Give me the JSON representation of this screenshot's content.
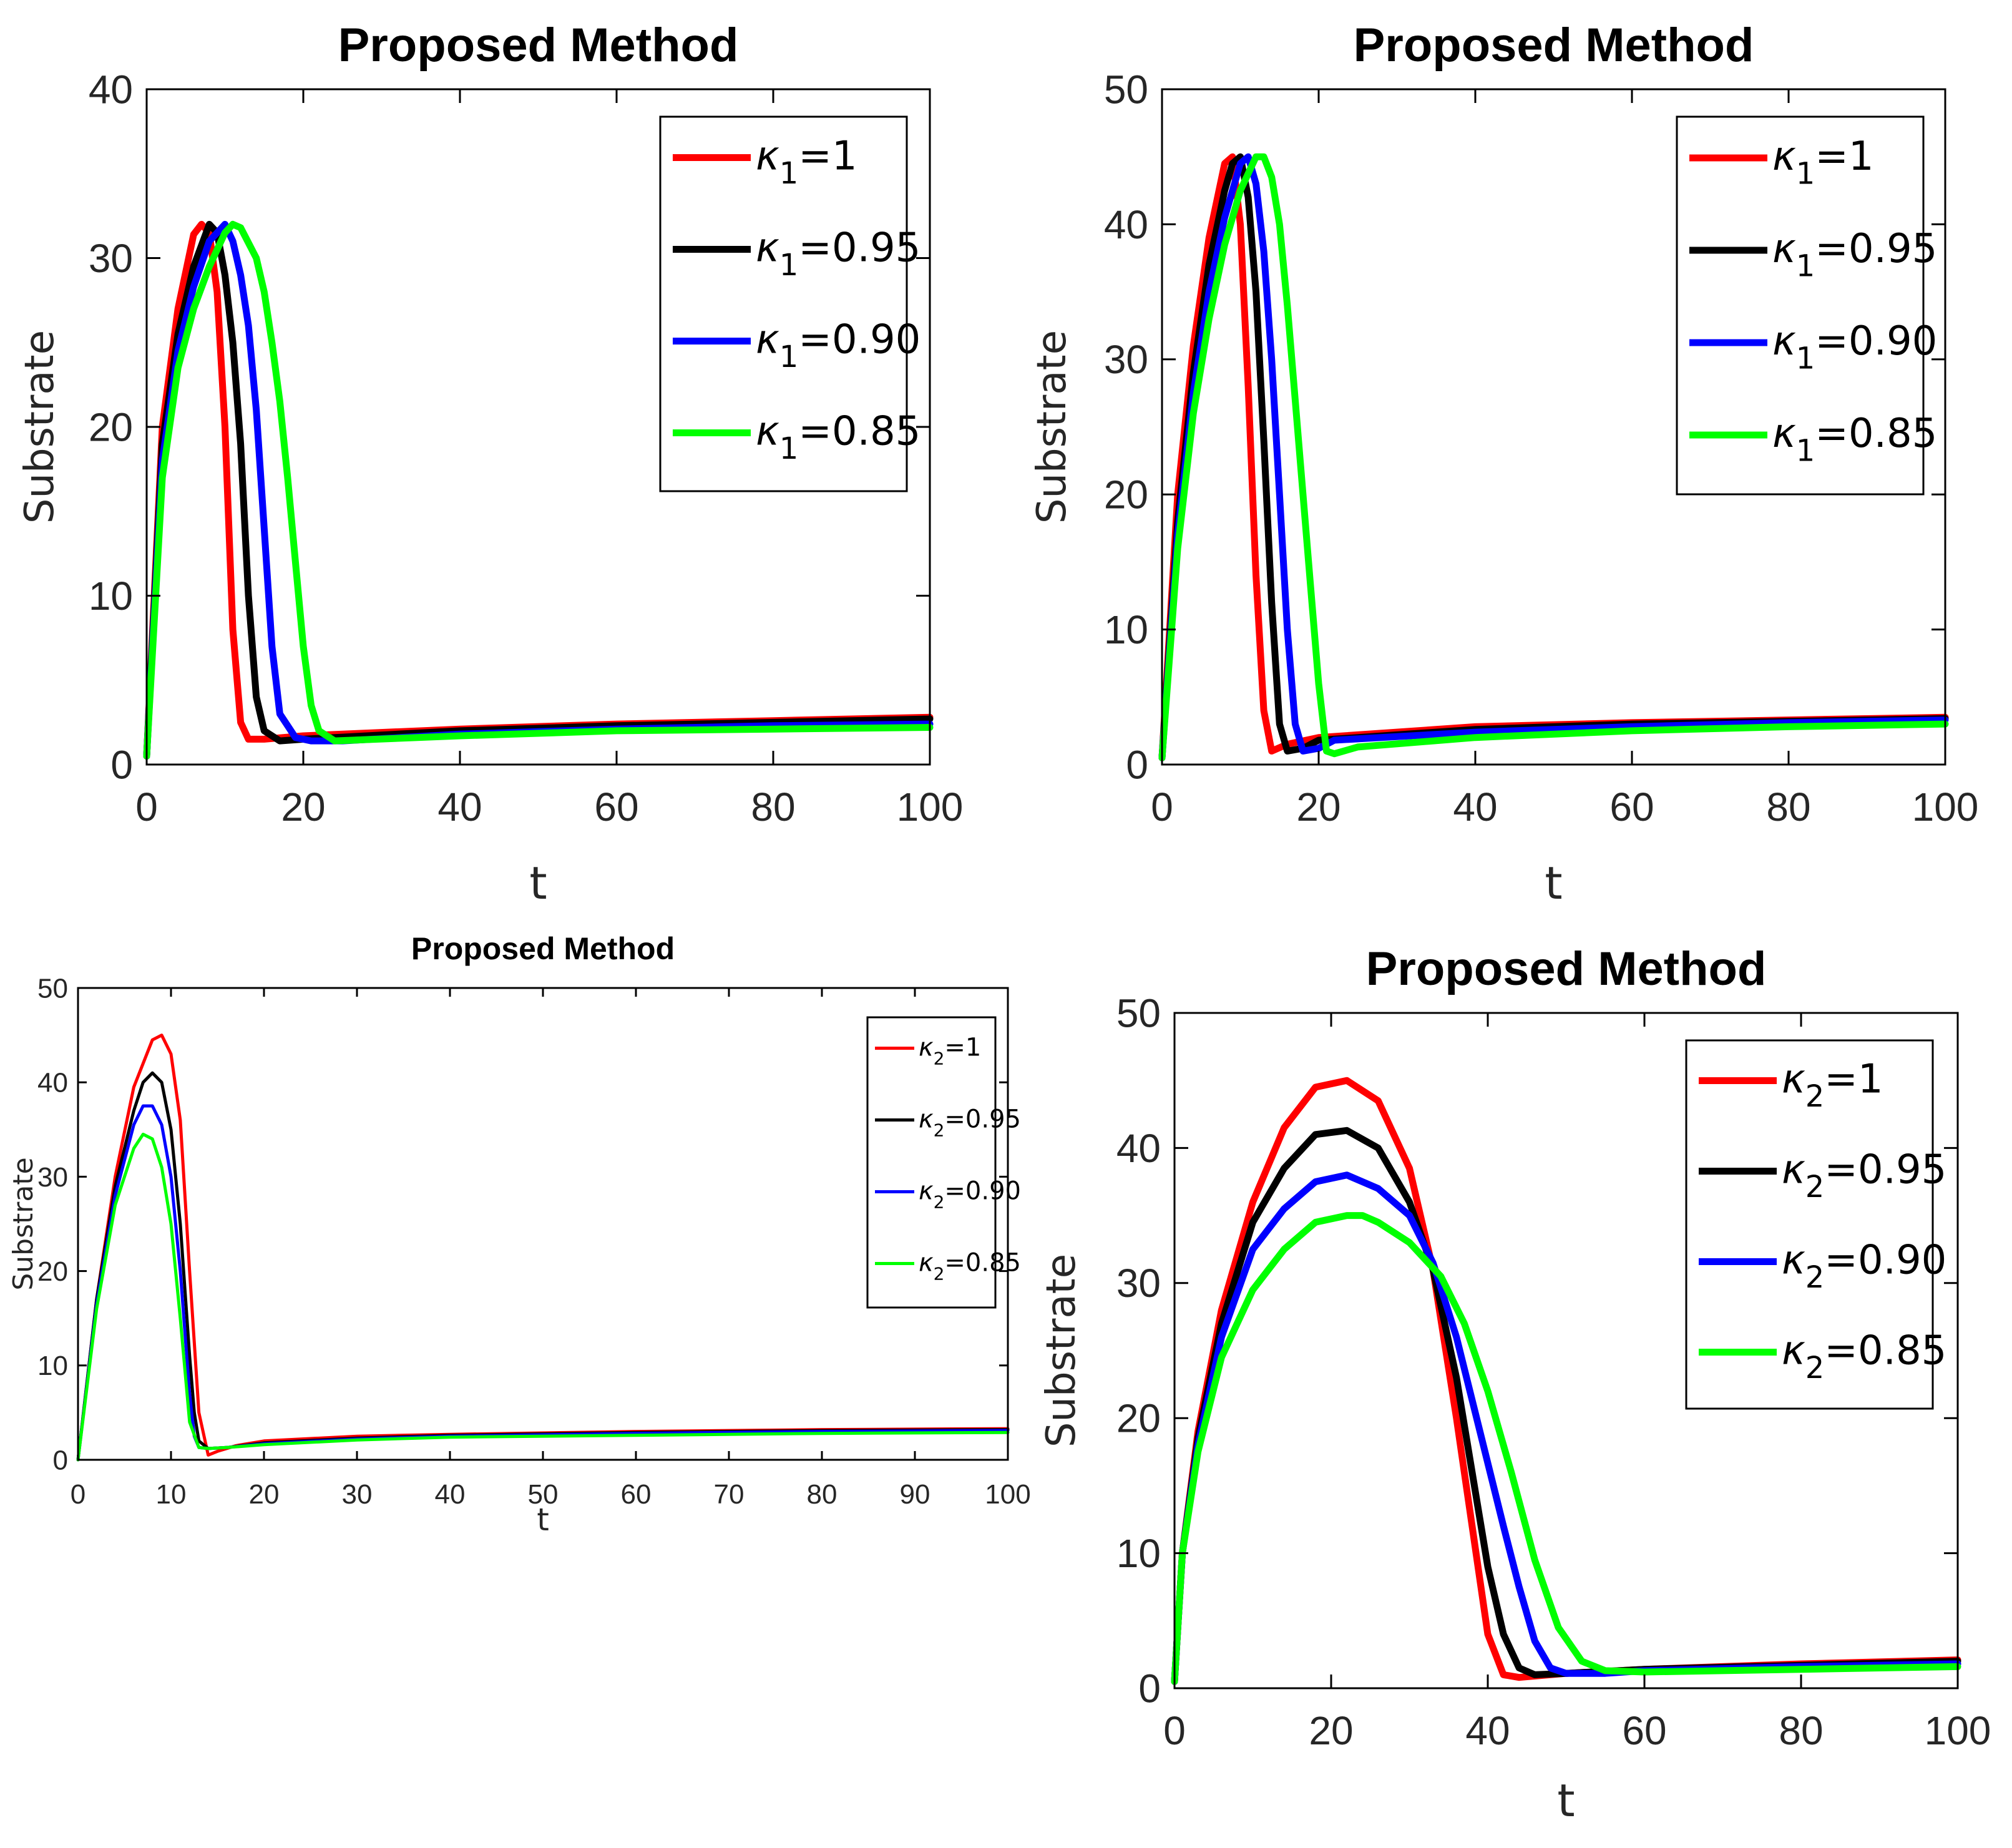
{
  "colors": {
    "red": "#ff0000",
    "black": "#000000",
    "blue": "#0000ff",
    "green": "#00ff00"
  },
  "chart_data": [
    {
      "type": "line",
      "title": "Proposed Method",
      "xlabel": "t",
      "ylabel": "Substrate",
      "xlim": [
        0,
        100
      ],
      "ylim": [
        0,
        40
      ],
      "xticks": [
        "0",
        "20",
        "40",
        "60",
        "80",
        "100"
      ],
      "yticks": [
        "0",
        "10",
        "20",
        "30",
        "40"
      ],
      "legend": {
        "symbol": "κ",
        "subscript": "1"
      },
      "series": [
        {
          "name": "κ1=1",
          "value": "1",
          "color": "red",
          "x": [
            0,
            2,
            4,
            6,
            7,
            8,
            9,
            10,
            11,
            12,
            13,
            15,
            20,
            40,
            60,
            80,
            100
          ],
          "y": [
            0.5,
            20,
            27,
            31.4,
            32,
            31.5,
            28,
            20,
            8,
            2.5,
            1.5,
            1.5,
            1.7,
            2.1,
            2.4,
            2.6,
            2.8
          ]
        },
        {
          "name": "κ1=0.95",
          "value": "0.95",
          "color": "black",
          "x": [
            0,
            2,
            4,
            6,
            8,
            9,
            10,
            11,
            12,
            13,
            14,
            15,
            17,
            20,
            40,
            60,
            80,
            100
          ],
          "y": [
            0.5,
            19,
            25.5,
            29.5,
            32,
            31.5,
            29,
            25,
            19,
            10,
            4,
            2,
            1.4,
            1.5,
            2,
            2.3,
            2.5,
            2.7
          ]
        },
        {
          "name": "κ1=0.90",
          "value": "0.90",
          "color": "blue",
          "x": [
            0,
            2,
            4,
            6,
            8,
            10,
            11,
            12,
            13,
            14,
            15,
            16,
            17,
            19,
            21,
            25,
            40,
            60,
            80,
            100
          ],
          "y": [
            0.5,
            18,
            24.5,
            28.3,
            31,
            32,
            31,
            29,
            26,
            21,
            14,
            7,
            3,
            1.6,
            1.4,
            1.4,
            1.8,
            2.1,
            2.3,
            2.4
          ]
        },
        {
          "name": "κ1=0.85",
          "value": "0.85",
          "color": "green",
          "x": [
            0,
            2,
            4,
            6,
            8,
            10,
            11,
            12,
            14,
            15,
            16,
            17,
            18,
            19,
            20,
            21,
            22,
            24,
            40,
            60,
            80,
            100
          ],
          "y": [
            0.5,
            17,
            23.5,
            27,
            29.5,
            31.5,
            32,
            31.8,
            30,
            28,
            25,
            21.5,
            17,
            12,
            7,
            3.5,
            2,
            1.4,
            1.7,
            2,
            2.1,
            2.2
          ]
        }
      ]
    },
    {
      "type": "line",
      "title": "Proposed Method",
      "xlabel": "t",
      "ylabel": "Substrate",
      "xlim": [
        0,
        100
      ],
      "ylim": [
        0,
        50
      ],
      "xticks": [
        "0",
        "20",
        "40",
        "60",
        "80",
        "100"
      ],
      "yticks": [
        "0",
        "10",
        "20",
        "30",
        "40",
        "50"
      ],
      "legend": {
        "symbol": "κ",
        "subscript": "1"
      },
      "series": [
        {
          "name": "κ1=1",
          "value": "1",
          "color": "red",
          "x": [
            0,
            2,
            4,
            6,
            8,
            9,
            10,
            11,
            12,
            13,
            14,
            16,
            20,
            40,
            60,
            80,
            100
          ],
          "y": [
            0.5,
            20,
            31,
            39,
            44.5,
            45,
            40,
            28,
            14,
            4,
            1,
            1.5,
            2,
            2.8,
            3.1,
            3.3,
            3.5
          ]
        },
        {
          "name": "κ1=0.95",
          "value": "0.95",
          "color": "black",
          "x": [
            0,
            2,
            4,
            6,
            8,
            9,
            10,
            11,
            12,
            13,
            14,
            15,
            16,
            18,
            20,
            40,
            60,
            80,
            100
          ],
          "y": [
            0.5,
            18,
            29,
            37,
            42.5,
            44.5,
            45,
            42,
            35,
            24,
            12,
            3,
            1,
            1.2,
            1.8,
            2.6,
            3,
            3.2,
            3.4
          ]
        },
        {
          "name": "κ1=0.90",
          "value": "0.90",
          "color": "blue",
          "x": [
            0,
            2,
            4,
            6,
            8,
            10,
            11,
            12,
            13,
            14,
            15,
            16,
            17,
            18,
            20,
            22,
            40,
            60,
            80,
            100
          ],
          "y": [
            0.5,
            17,
            27.5,
            35,
            40.5,
            44.5,
            45,
            43,
            38,
            30,
            20,
            10,
            3,
            1,
            1.2,
            1.8,
            2.4,
            2.8,
            3.1,
            3.3
          ]
        },
        {
          "name": "κ1=0.85",
          "value": "0.85",
          "color": "green",
          "x": [
            0,
            2,
            4,
            6,
            8,
            10,
            12,
            13,
            14,
            15,
            16,
            17,
            18,
            19,
            20,
            21,
            22,
            25,
            40,
            60,
            80,
            100
          ],
          "y": [
            0.5,
            16,
            26,
            33,
            38.5,
            42.5,
            45,
            45,
            43.5,
            40,
            34,
            27,
            20,
            13,
            6,
            1,
            0.8,
            1.3,
            2,
            2.5,
            2.8,
            3
          ]
        }
      ]
    },
    {
      "type": "line",
      "title": "Proposed Method",
      "xlabel": "t",
      "ylabel": "Substrate",
      "xlim": [
        0,
        100
      ],
      "ylim": [
        0,
        50
      ],
      "xticks": [
        "0",
        "10",
        "20",
        "30",
        "40",
        "50",
        "60",
        "70",
        "80",
        "90",
        "100"
      ],
      "yticks": [
        "0",
        "10",
        "20",
        "30",
        "40",
        "50"
      ],
      "legend": {
        "symbol": "κ",
        "subscript": "2"
      },
      "series": [
        {
          "name": "κ2=1",
          "value": "1",
          "color": "red",
          "x": [
            0,
            2,
            4,
            6,
            8,
            9,
            10,
            11,
            12,
            13,
            14,
            15,
            17,
            20,
            30,
            40,
            60,
            80,
            100
          ],
          "y": [
            0,
            17,
            30,
            39.5,
            44.5,
            45,
            43,
            36,
            20,
            5,
            0.5,
            0.9,
            1.5,
            2,
            2.5,
            2.7,
            3,
            3.2,
            3.3
          ]
        },
        {
          "name": "κ2=0.95",
          "value": "0.95",
          "color": "black",
          "x": [
            0,
            2,
            4,
            6,
            7,
            8,
            9,
            10,
            11,
            12,
            12.5,
            13,
            14,
            16,
            20,
            30,
            40,
            60,
            80,
            100
          ],
          "y": [
            0,
            17,
            29,
            37,
            40,
            41,
            40,
            35,
            25,
            11,
            5,
            2,
            1.2,
            1.3,
            1.8,
            2.3,
            2.6,
            2.9,
            3.1,
            3.2
          ]
        },
        {
          "name": "κ2=0.90",
          "value": "0.90",
          "color": "blue",
          "x": [
            0,
            2,
            4,
            6,
            7,
            8,
            9,
            10,
            11,
            12,
            12.5,
            13,
            14,
            16,
            20,
            30,
            40,
            60,
            80,
            100
          ],
          "y": [
            0,
            16.5,
            28,
            35.5,
            37.5,
            37.5,
            35.5,
            30,
            20,
            7,
            2.5,
            1.3,
            1.2,
            1.3,
            1.7,
            2.2,
            2.5,
            2.8,
            3,
            3.1
          ]
        },
        {
          "name": "κ2=0.85",
          "value": "0.85",
          "color": "green",
          "x": [
            0,
            2,
            4,
            6,
            7,
            8,
            9,
            10,
            11,
            12,
            13,
            14,
            16,
            20,
            30,
            40,
            60,
            80,
            100
          ],
          "y": [
            0,
            16,
            27,
            33,
            34.5,
            34,
            31,
            25,
            15,
            4,
            1.3,
            1.2,
            1.3,
            1.6,
            2.1,
            2.4,
            2.6,
            2.8,
            2.9
          ]
        }
      ]
    },
    {
      "type": "line",
      "title": "Proposed Method",
      "xlabel": "t",
      "ylabel": "Substrate",
      "xlim": [
        0,
        100
      ],
      "ylim": [
        0,
        50
      ],
      "xticks": [
        "0",
        "20",
        "40",
        "60",
        "80",
        "100"
      ],
      "yticks": [
        "0",
        "10",
        "20",
        "30",
        "40",
        "50"
      ],
      "legend": {
        "symbol": "κ",
        "subscript": "2"
      },
      "series": [
        {
          "name": "κ2=1",
          "value": "1",
          "color": "red",
          "x": [
            0,
            1,
            3,
            6,
            10,
            14,
            18,
            22,
            26,
            30,
            33,
            36,
            38,
            40,
            42,
            44,
            50,
            60,
            80,
            100
          ],
          "y": [
            0.5,
            10,
            19,
            28,
            36,
            41.5,
            44.5,
            45,
            43.5,
            38.5,
            31,
            20,
            12,
            4,
            1,
            0.8,
            1.1,
            1.4,
            1.8,
            2.1
          ]
        },
        {
          "name": "κ2=0.95",
          "value": "0.95",
          "color": "black",
          "x": [
            0,
            1,
            3,
            6,
            10,
            14,
            18,
            22,
            26,
            30,
            33,
            36,
            38,
            40,
            42,
            44,
            46,
            50,
            60,
            80,
            100
          ],
          "y": [
            0.5,
            10,
            18.5,
            27,
            34.5,
            38.5,
            41,
            41.3,
            40,
            36,
            31,
            23,
            16,
            9,
            4,
            1.5,
            1,
            1.1,
            1.4,
            1.7,
            2
          ]
        },
        {
          "name": "κ2=0.90",
          "value": "0.90",
          "color": "blue",
          "x": [
            0,
            1,
            3,
            6,
            10,
            14,
            18,
            22,
            26,
            30,
            33,
            36,
            39,
            42,
            44,
            46,
            48,
            50,
            55,
            60,
            80,
            100
          ],
          "y": [
            0.5,
            10,
            18,
            26,
            32.5,
            35.5,
            37.5,
            38,
            37,
            35,
            31.5,
            26,
            19,
            12,
            7.5,
            3.5,
            1.5,
            1.1,
            1.1,
            1.3,
            1.6,
            1.8
          ]
        },
        {
          "name": "κ2=0.85",
          "value": "0.85",
          "color": "green",
          "x": [
            0,
            1,
            3,
            6,
            10,
            14,
            18,
            22,
            24,
            26,
            30,
            34,
            37,
            40,
            43,
            46,
            49,
            52,
            55,
            60,
            80,
            100
          ],
          "y": [
            0.5,
            10,
            17.5,
            24.5,
            29.5,
            32.5,
            34.5,
            35,
            35,
            34.5,
            33,
            30.5,
            27,
            22,
            16,
            9.5,
            4.5,
            2,
            1.3,
            1.2,
            1.4,
            1.6
          ]
        }
      ]
    }
  ]
}
